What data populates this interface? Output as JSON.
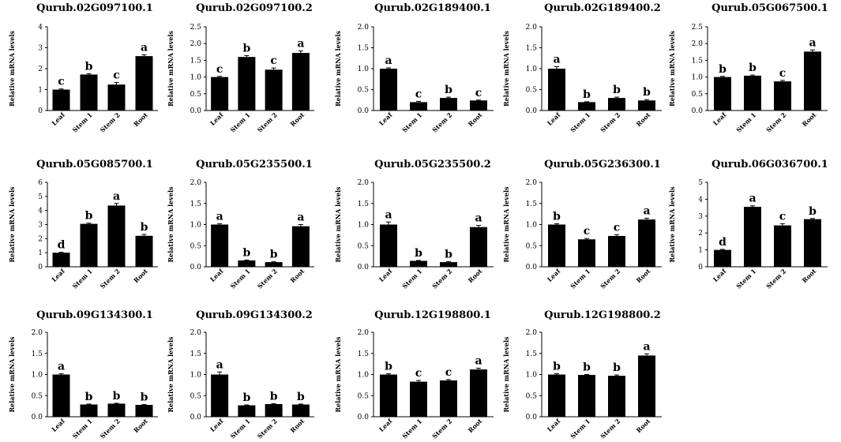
{
  "chart_data": [
    {
      "type": "bar",
      "title": "Qurub.02G097100.1",
      "ylabel": "Relative mRNA levels",
      "categories": [
        "Leaf",
        "Stem 1",
        "Stem 2",
        "Root"
      ],
      "values": [
        1.0,
        1.72,
        1.24,
        2.6
      ],
      "errors": [
        0.03,
        0.04,
        0.1,
        0.06
      ],
      "letters": [
        "c",
        "b",
        "c",
        "a"
      ],
      "ylim": [
        0,
        4
      ],
      "ticks": [
        "0",
        "1",
        "2",
        "3",
        "4"
      ]
    },
    {
      "type": "bar",
      "title": "Qurub.02G097100.2",
      "ylabel": "Relative mRNA levels",
      "categories": [
        "Leaf",
        "Stem 1",
        "Stem 2",
        "Root"
      ],
      "values": [
        1.0,
        1.6,
        1.22,
        1.72
      ],
      "errors": [
        0.02,
        0.04,
        0.05,
        0.06
      ],
      "letters": [
        "c",
        "b",
        "c",
        "a"
      ],
      "ylim": [
        0,
        2.5
      ],
      "ticks": [
        "0.0",
        "0.5",
        "1.0",
        "1.5",
        "2.0",
        "2.5"
      ]
    },
    {
      "type": "bar",
      "title": "Qurub.02G189400.1",
      "ylabel": "Relative mRNA levels",
      "categories": [
        "Leaf",
        "Stem 1",
        "Stem 2",
        "Root"
      ],
      "values": [
        1.0,
        0.2,
        0.3,
        0.24
      ],
      "errors": [
        0.02,
        0.02,
        0.02,
        0.01
      ],
      "letters": [
        "a",
        "c",
        "b",
        "c"
      ],
      "ylim": [
        0,
        2
      ],
      "ticks": [
        "0.0",
        "0.5",
        "1.0",
        "1.5",
        "2.0"
      ]
    },
    {
      "type": "bar",
      "title": "Qurub.02G189400.2",
      "ylabel": "Relative mRNA levels",
      "categories": [
        "Leaf",
        "Stem 1",
        "Stem 2",
        "Root"
      ],
      "values": [
        1.0,
        0.2,
        0.3,
        0.24
      ],
      "errors": [
        0.05,
        0.01,
        0.02,
        0.02
      ],
      "letters": [
        "a",
        "b",
        "b",
        "b"
      ],
      "ylim": [
        0,
        2
      ],
      "ticks": [
        "0.0",
        "0.5",
        "1.0",
        "1.5",
        "2.0"
      ]
    },
    {
      "type": "bar",
      "title": "Qurub.05G067500.1",
      "ylabel": "Relative mRNA levels",
      "categories": [
        "Leaf",
        "Stem 1",
        "Stem 2",
        "Root"
      ],
      "values": [
        1.0,
        1.04,
        0.87,
        1.76
      ],
      "errors": [
        0.02,
        0.02,
        0.03,
        0.05
      ],
      "letters": [
        "b",
        "b",
        "c",
        "a"
      ],
      "ylim": [
        0,
        2.5
      ],
      "ticks": [
        "0.0",
        "0.5",
        "1.0",
        "1.5",
        "2.0",
        "2.5"
      ]
    },
    {
      "type": "bar",
      "title": "Qurub.05G085700.1",
      "ylabel": "Relative mRNA levels",
      "categories": [
        "Leaf",
        "Stem 1",
        "Stem 2",
        "Root"
      ],
      "values": [
        1.0,
        3.05,
        4.35,
        2.2
      ],
      "errors": [
        0.03,
        0.05,
        0.15,
        0.1
      ],
      "letters": [
        "d",
        "b",
        "a",
        "b"
      ],
      "ylim": [
        0,
        6
      ],
      "ticks": [
        "0",
        "1",
        "2",
        "3",
        "4",
        "5",
        "6"
      ]
    },
    {
      "type": "bar",
      "title": "Qurub.05G235500.1",
      "ylabel": "Relative mRNA levels",
      "categories": [
        "Leaf",
        "Stem 1",
        "Stem 2",
        "Root"
      ],
      "values": [
        1.0,
        0.15,
        0.11,
        0.96
      ],
      "errors": [
        0.02,
        0.01,
        0.01,
        0.04
      ],
      "letters": [
        "a",
        "b",
        "b",
        "a"
      ],
      "ylim": [
        0,
        2
      ],
      "ticks": [
        "0.0",
        "0.5",
        "1.0",
        "1.5",
        "2.0"
      ]
    },
    {
      "type": "bar",
      "title": "Qurub.05G235500.2",
      "ylabel": "Relative mRNA levels",
      "categories": [
        "Leaf",
        "Stem 1",
        "Stem 2",
        "Root"
      ],
      "values": [
        1.0,
        0.14,
        0.11,
        0.94
      ],
      "errors": [
        0.06,
        0.01,
        0.01,
        0.04
      ],
      "letters": [
        "a",
        "b",
        "b",
        "a"
      ],
      "ylim": [
        0,
        2
      ],
      "ticks": [
        "0.0",
        "0.5",
        "1.0",
        "1.5",
        "2.0"
      ]
    },
    {
      "type": "bar",
      "title": "Qurub.05G236300.1",
      "ylabel": "Relative mRNA levels",
      "categories": [
        "Leaf",
        "Stem 1",
        "Stem 2",
        "Root"
      ],
      "values": [
        1.0,
        0.65,
        0.73,
        1.12
      ],
      "errors": [
        0.02,
        0.02,
        0.03,
        0.03
      ],
      "letters": [
        "b",
        "c",
        "c",
        "a"
      ],
      "ylim": [
        0,
        2
      ],
      "ticks": [
        "0.0",
        "0.5",
        "1.0",
        "1.5",
        "2.0"
      ]
    },
    {
      "type": "bar",
      "title": "Qurub.06G036700.1",
      "ylabel": "Relative mRNA levels",
      "categories": [
        "Leaf",
        "Stem 1",
        "Stem 2",
        "Root"
      ],
      "values": [
        1.0,
        3.55,
        2.45,
        2.82
      ],
      "errors": [
        0.03,
        0.06,
        0.1,
        0.04
      ],
      "letters": [
        "d",
        "a",
        "c",
        "b"
      ],
      "ylim": [
        0,
        5
      ],
      "ticks": [
        "0",
        "1",
        "2",
        "3",
        "4",
        "5"
      ]
    },
    {
      "type": "bar",
      "title": "Qurub.09G134300.1",
      "ylabel": "Relative mRNA levels",
      "categories": [
        "Leaf",
        "Stem 1",
        "Stem 2",
        "Root"
      ],
      "values": [
        1.0,
        0.29,
        0.31,
        0.28
      ],
      "errors": [
        0.02,
        0.01,
        0.01,
        0.01
      ],
      "letters": [
        "a",
        "b",
        "b",
        "b"
      ],
      "ylim": [
        0,
        2
      ],
      "ticks": [
        "0.0",
        "0.5",
        "1.0",
        "1.5",
        "2.0"
      ]
    },
    {
      "type": "bar",
      "title": "Qurub.09G134300.2",
      "ylabel": "Relative mRNA levels",
      "categories": [
        "Leaf",
        "Stem 1",
        "Stem 2",
        "Root"
      ],
      "values": [
        1.0,
        0.27,
        0.3,
        0.29
      ],
      "errors": [
        0.06,
        0.01,
        0.01,
        0.01
      ],
      "letters": [
        "a",
        "b",
        "b",
        "b"
      ],
      "ylim": [
        0,
        2
      ],
      "ticks": [
        "0.0",
        "0.5",
        "1.0",
        "1.5",
        "2.0"
      ]
    },
    {
      "type": "bar",
      "title": "Qurub.12G198800.1",
      "ylabel": "Relative mRNA levels",
      "categories": [
        "Leaf",
        "Stem 1",
        "Stem 2",
        "Root"
      ],
      "values": [
        1.0,
        0.83,
        0.86,
        1.12
      ],
      "errors": [
        0.02,
        0.03,
        0.02,
        0.03
      ],
      "letters": [
        "b",
        "c",
        "c",
        "a"
      ],
      "ylim": [
        0,
        2
      ],
      "ticks": [
        "0.0",
        "0.5",
        "1.0",
        "1.5",
        "2.0"
      ]
    },
    {
      "type": "bar",
      "title": "Qurub.12G198800.2",
      "ylabel": "Relative mRNA levels",
      "categories": [
        "Leaf",
        "Stem 1",
        "Stem 2",
        "Root"
      ],
      "values": [
        1.0,
        0.99,
        0.97,
        1.45
      ],
      "errors": [
        0.02,
        0.01,
        0.02,
        0.04
      ],
      "letters": [
        "b",
        "b",
        "b",
        "a"
      ],
      "ylim": [
        0,
        2
      ],
      "ticks": [
        "0.0",
        "0.5",
        "1.0",
        "1.5",
        "2.0"
      ]
    }
  ]
}
